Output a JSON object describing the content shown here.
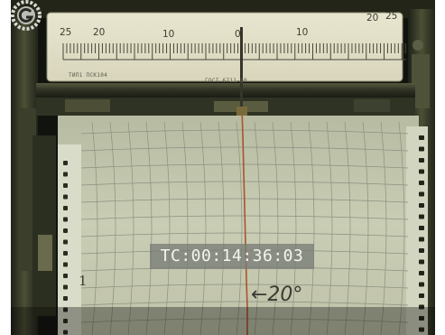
{
  "timecode": "TC:00:14:36:03",
  "scale": {
    "labels": [
      "25",
      "20",
      "10",
      "0",
      "10",
      "20",
      "25"
    ],
    "model_text": "ТИП1 ПСК104",
    "gost_text": "ГОСТ 6711-80"
  },
  "chart_paper": {
    "temperature_annotation": "←20°",
    "row_number": "1"
  },
  "watermark": "logo-watermark-icon"
}
